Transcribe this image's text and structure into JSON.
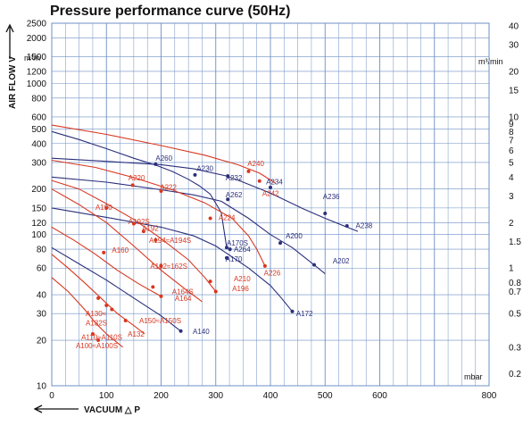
{
  "chart_data": {
    "type": "line",
    "title": "Pressure performance curve (50Hz)",
    "ylabel": "AIR FLOW  V",
    "xlabel": "VACUUM  △ P",
    "left_unit": "m³/h",
    "right_unit": "m³/min",
    "x_unit": "mbar",
    "xlim": [
      0,
      800
    ],
    "x_ticks": [
      {
        "v": 0,
        "label": "0"
      },
      {
        "v": 100,
        "label": "100"
      },
      {
        "v": 200,
        "label": "200"
      },
      {
        "v": 300,
        "label": "300"
      },
      {
        "v": 400,
        "label": "400"
      },
      {
        "v": 500,
        "label": "500"
      },
      {
        "v": 600,
        "label": "600"
      },
      {
        "v": 800,
        "label": "800"
      }
    ],
    "y_ticks": [
      {
        "v": 10,
        "label": "10"
      },
      {
        "v": 20,
        "label": "20"
      },
      {
        "v": 30,
        "label": "30"
      },
      {
        "v": 40,
        "label": "40"
      },
      {
        "v": 60,
        "label": "60"
      },
      {
        "v": 80,
        "label": "80"
      },
      {
        "v": 100,
        "label": "100"
      },
      {
        "v": 120,
        "label": "120"
      },
      {
        "v": 150,
        "label": "150"
      },
      {
        "v": 200,
        "label": "200"
      },
      {
        "v": 300,
        "label": "300"
      },
      {
        "v": 400,
        "label": "400"
      },
      {
        "v": 500,
        "label": "500"
      },
      {
        "v": 600,
        "label": "600"
      },
      {
        "v": 800,
        "label": "800"
      },
      {
        "v": 1000,
        "label": "1000"
      },
      {
        "v": 1200,
        "label": "1200"
      },
      {
        "v": 1500,
        "label": "1500"
      },
      {
        "v": 2000,
        "label": "2000"
      },
      {
        "v": 2500,
        "label": "2500"
      }
    ],
    "y2_ticks": [
      {
        "v": 0.2,
        "label": "0.2"
      },
      {
        "v": 0.3,
        "label": "0.3"
      },
      {
        "v": 0.5,
        "label": "0.5"
      },
      {
        "v": 0.7,
        "label": "0.7"
      },
      {
        "v": 0.8,
        "label": "0.8"
      },
      {
        "v": 1,
        "label": "1"
      },
      {
        "v": 1.5,
        "label": "1.5"
      },
      {
        "v": 2,
        "label": "2"
      },
      {
        "v": 3,
        "label": "3"
      },
      {
        "v": 4,
        "label": "4"
      },
      {
        "v": 5,
        "label": "5"
      },
      {
        "v": 6,
        "label": "6"
      },
      {
        "v": 7,
        "label": "7"
      },
      {
        "v": 8,
        "label": "8"
      },
      {
        "v": 9,
        "label": "9"
      },
      {
        "v": 10,
        "label": "10"
      },
      {
        "v": 15,
        "label": "15"
      },
      {
        "v": 20,
        "label": "20"
      },
      {
        "v": 30,
        "label": "30"
      },
      {
        "v": 40,
        "label": "40"
      }
    ],
    "colors": {
      "blue": "#2b2f7a",
      "red": "#d9371f",
      "grid": "#6e8fc4",
      "text": "#111111"
    },
    "series": [
      {
        "color": "blue",
        "points": [
          [
            0,
            480
          ],
          [
            50,
            425
          ],
          [
            100,
            370
          ],
          [
            150,
            320
          ],
          [
            190,
            288
          ],
          [
            220,
            262
          ],
          [
            250,
            232
          ],
          [
            270,
            210
          ],
          [
            290,
            185
          ],
          [
            310,
            140
          ],
          [
            320,
            82
          ]
        ],
        "markers": [
          [
            190,
            292,
            "A260"
          ],
          [
            320,
            82,
            "A264"
          ]
        ]
      },
      {
        "color": "blue",
        "points": [
          [
            0,
            320
          ],
          [
            100,
            305
          ],
          [
            200,
            290
          ],
          [
            260,
            272
          ],
          [
            320,
            244
          ],
          [
            350,
            222
          ],
          [
            400,
            188
          ],
          [
            460,
            148
          ],
          [
            500,
            128
          ],
          [
            540,
            112
          ],
          [
            560,
            105
          ]
        ],
        "markers": [
          [
            262,
            248,
            "A230"
          ],
          [
            322,
            244,
            "A232"
          ],
          [
            400,
            205,
            "A234"
          ],
          [
            500,
            138,
            "A236"
          ],
          [
            540,
            114,
            "A238"
          ]
        ]
      },
      {
        "color": "blue",
        "points": [
          [
            0,
            240
          ],
          [
            100,
            222
          ],
          [
            200,
            198
          ],
          [
            260,
            183
          ],
          [
            310,
            166
          ],
          [
            360,
            128
          ],
          [
            400,
            100
          ],
          [
            440,
            82
          ],
          [
            480,
            63
          ],
          [
            500,
            55
          ]
        ],
        "markers": [
          [
            322,
            171,
            "A262"
          ],
          [
            418,
            88,
            "A200"
          ],
          [
            480,
            63,
            "A202"
          ]
        ]
      },
      {
        "color": "blue",
        "points": [
          [
            0,
            150
          ],
          [
            100,
            130
          ],
          [
            200,
            112
          ],
          [
            260,
            98
          ],
          [
            300,
            84
          ],
          [
            360,
            60
          ],
          [
            400,
            46
          ],
          [
            420,
            38
          ],
          [
            440,
            31
          ]
        ],
        "markers": [
          [
            326,
            80,
            "A170S"
          ],
          [
            320,
            70,
            "A170"
          ],
          [
            440,
            31,
            "A172"
          ]
        ]
      },
      {
        "color": "blue",
        "points": [
          [
            0,
            82
          ],
          [
            50,
            64
          ],
          [
            100,
            50
          ],
          [
            150,
            38
          ],
          [
            200,
            29
          ],
          [
            236,
            23
          ]
        ],
        "markers": [
          [
            236,
            23,
            "A140"
          ]
        ]
      },
      {
        "color": "red",
        "points": [
          [
            0,
            530
          ],
          [
            100,
            460
          ],
          [
            200,
            388
          ],
          [
            280,
            335
          ],
          [
            340,
            290
          ],
          [
            380,
            255
          ],
          [
            410,
            218
          ]
        ],
        "markers": [
          [
            360,
            262,
            "A240"
          ],
          [
            380,
            226,
            "A242"
          ]
        ]
      },
      {
        "color": "red",
        "points": [
          [
            0,
            310
          ],
          [
            80,
            278
          ],
          [
            150,
            238
          ],
          [
            220,
            198
          ],
          [
            280,
            162
          ],
          [
            330,
            128
          ],
          [
            360,
            98
          ],
          [
            375,
            80
          ],
          [
            390,
            62
          ]
        ],
        "markers": [
          [
            148,
            212,
            "A220"
          ],
          [
            200,
            194,
            "A222"
          ],
          [
            290,
            128,
            "A224"
          ],
          [
            390,
            62,
            "A226"
          ]
        ]
      },
      {
        "color": "red",
        "points": [
          [
            0,
            228
          ],
          [
            50,
            200
          ],
          [
            100,
            160
          ],
          [
            150,
            126
          ],
          [
            200,
            94
          ],
          [
            250,
            68
          ],
          [
            280,
            52
          ],
          [
            300,
            42
          ]
        ],
        "markers": [
          [
            100,
            150,
            "A190"
          ],
          [
            150,
            118,
            "A192S"
          ],
          [
            168,
            105,
            "A192"
          ],
          [
            190,
            92,
            "A194S"
          ],
          [
            290,
            49,
            "A210"
          ],
          [
            300,
            42,
            "A196"
          ]
        ]
      },
      {
        "color": "red",
        "points": [
          [
            0,
            200
          ],
          [
            50,
            158
          ],
          [
            100,
            120
          ],
          [
            150,
            84
          ],
          [
            200,
            58
          ],
          [
            250,
            42
          ],
          [
            275,
            36
          ]
        ],
        "markers": [
          [
            95,
            76,
            "A160"
          ],
          [
            200,
            62,
            "A162S"
          ]
        ]
      },
      {
        "color": "red",
        "points": [
          [
            0,
            112
          ],
          [
            40,
            92
          ],
          [
            80,
            74
          ],
          [
            120,
            58
          ],
          [
            160,
            47
          ],
          [
            200,
            39
          ]
        ],
        "markers": [
          [
            185,
            45,
            "A164S"
          ],
          [
            200,
            39,
            "A164"
          ]
        ]
      },
      {
        "color": "red",
        "points": [
          [
            0,
            74
          ],
          [
            30,
            60
          ],
          [
            60,
            48
          ],
          [
            90,
            38
          ],
          [
            120,
            30
          ],
          [
            150,
            25
          ],
          [
            170,
            22
          ]
        ],
        "markers": [
          [
            85,
            38,
            "A130"
          ],
          [
            100,
            34,
            "A132S"
          ],
          [
            110,
            32,
            "A150"
          ],
          [
            135,
            27,
            "A132"
          ]
        ]
      },
      {
        "color": "red",
        "points": [
          [
            0,
            52
          ],
          [
            30,
            42
          ],
          [
            60,
            32
          ],
          [
            80,
            26
          ],
          [
            100,
            22
          ],
          [
            130,
            18
          ]
        ],
        "markers": [
          [
            75,
            22,
            "A110"
          ],
          [
            85,
            20,
            "A100"
          ]
        ]
      }
    ],
    "labels": [
      {
        "t": "A260",
        "x": 190,
        "y": 320,
        "c": "blue"
      },
      {
        "t": "A230",
        "x": 265,
        "y": 275,
        "c": "blue"
      },
      {
        "t": "A232",
        "x": 318,
        "y": 238,
        "c": "blue"
      },
      {
        "t": "A240",
        "x": 358,
        "y": 295,
        "c": "red"
      },
      {
        "t": "A234",
        "x": 392,
        "y": 224,
        "c": "blue"
      },
      {
        "t": "A242",
        "x": 385,
        "y": 188,
        "c": "red"
      },
      {
        "t": "A220",
        "x": 140,
        "y": 238,
        "c": "red"
      },
      {
        "t": "A222",
        "x": 198,
        "y": 206,
        "c": "red"
      },
      {
        "t": "A262",
        "x": 318,
        "y": 184,
        "c": "blue"
      },
      {
        "t": "A236",
        "x": 496,
        "y": 179,
        "c": "blue"
      },
      {
        "t": "A238",
        "x": 556,
        "y": 115,
        "c": "blue"
      },
      {
        "t": "A190",
        "x": 80,
        "y": 152,
        "c": "red"
      },
      {
        "t": "A224",
        "x": 305,
        "y": 130,
        "c": "red"
      },
      {
        "t": "A192S",
        "x": 140,
        "y": 122,
        "c": "red"
      },
      {
        "t": "A192",
        "x": 165,
        "y": 110,
        "c": "red"
      },
      {
        "t": "A200",
        "x": 428,
        "y": 98,
        "c": "blue"
      },
      {
        "t": "A194≈A194S",
        "x": 178,
        "y": 92,
        "c": "red"
      },
      {
        "t": "A170S",
        "x": 320,
        "y": 88,
        "c": "blue"
      },
      {
        "t": "A264",
        "x": 333,
        "y": 80,
        "c": "blue"
      },
      {
        "t": "A160",
        "x": 110,
        "y": 79,
        "c": "red"
      },
      {
        "t": "A170",
        "x": 318,
        "y": 69,
        "c": "blue"
      },
      {
        "t": "A202",
        "x": 514,
        "y": 67,
        "c": "blue"
      },
      {
        "t": "A226",
        "x": 388,
        "y": 56,
        "c": "red"
      },
      {
        "t": "A162≈162S",
        "x": 180,
        "y": 62,
        "c": "red"
      },
      {
        "t": "A210",
        "x": 333,
        "y": 51,
        "c": "red"
      },
      {
        "t": "A196",
        "x": 330,
        "y": 44,
        "c": "red"
      },
      {
        "t": "A164S",
        "x": 220,
        "y": 42,
        "c": "red"
      },
      {
        "t": "A172",
        "x": 447,
        "y": 30,
        "c": "blue"
      },
      {
        "t": "A164",
        "x": 225,
        "y": 38,
        "c": "red"
      },
      {
        "t": "A130≈",
        "x": 62,
        "y": 30,
        "c": "red"
      },
      {
        "t": "A150≈A150S",
        "x": 160,
        "y": 27,
        "c": "red"
      },
      {
        "t": "A132S",
        "x": 62,
        "y": 26,
        "c": "red"
      },
      {
        "t": "A140",
        "x": 258,
        "y": 23,
        "c": "blue"
      },
      {
        "t": "A132",
        "x": 139,
        "y": 22,
        "c": "red"
      },
      {
        "t": "A110≈A110S",
        "x": 54,
        "y": 21,
        "c": "red"
      },
      {
        "t": "A100≈A100S",
        "x": 44,
        "y": 18.5,
        "c": "red"
      }
    ]
  }
}
